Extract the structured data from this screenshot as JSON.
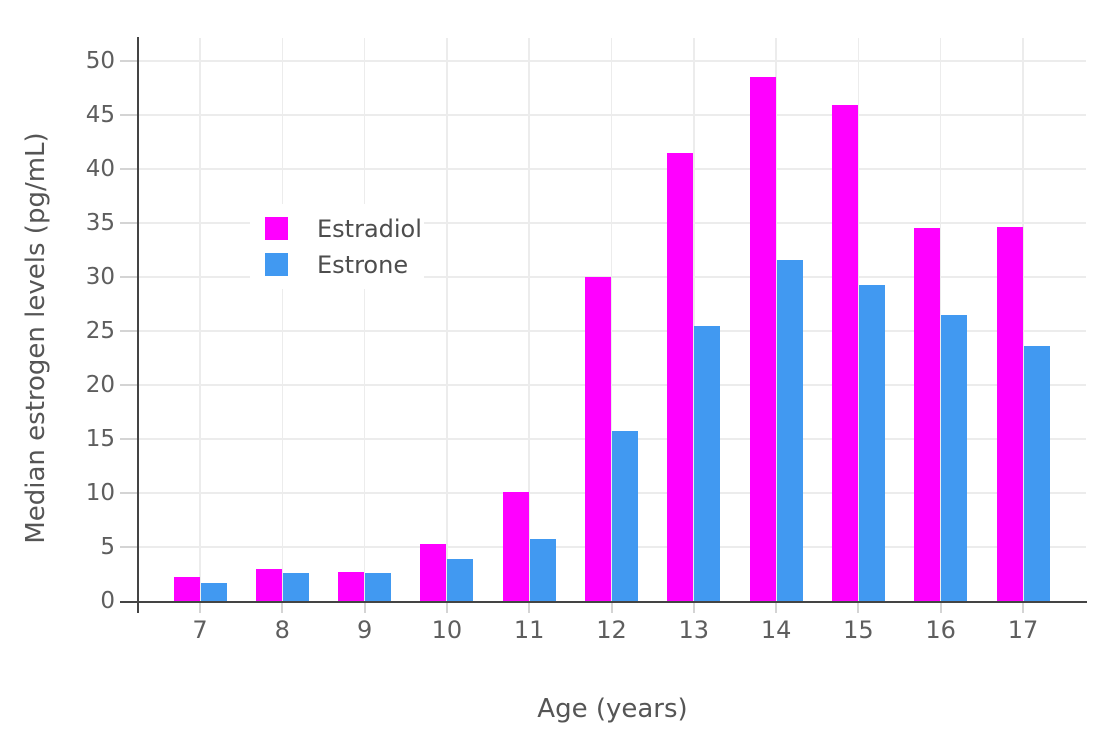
{
  "chart_data": {
    "type": "bar",
    "title": "",
    "xlabel": "Age (years)",
    "ylabel": "Median estrogen levels (pg/mL)",
    "categories": [
      "7",
      "8",
      "9",
      "10",
      "11",
      "12",
      "13",
      "14",
      "15",
      "16",
      "17"
    ],
    "yticks": [
      0,
      5,
      10,
      15,
      20,
      25,
      30,
      35,
      40,
      45,
      50
    ],
    "ylim": [
      0,
      52.2
    ],
    "grid": true,
    "legend_position": "inside-upper-left",
    "series": [
      {
        "name": "Estradiol",
        "color": "#ff00ff",
        "values": [
          2.2,
          3.0,
          2.65,
          5.3,
          10.1,
          30.0,
          41.5,
          48.5,
          45.9,
          34.5,
          34.6
        ]
      },
      {
        "name": "Estrone",
        "color": "#4199f1",
        "values": [
          1.7,
          2.6,
          2.55,
          3.9,
          5.7,
          15.7,
          25.5,
          31.6,
          29.3,
          26.5,
          23.6
        ]
      }
    ]
  },
  "colors": {
    "background": "#ffffff",
    "axis_line": "#444444",
    "gridline": "#ececec",
    "tick_mark": "#d4d4d4",
    "tick_label": "#5e5e5e",
    "axis_title": "#555555",
    "legend_text": "#4d4d4d"
  }
}
